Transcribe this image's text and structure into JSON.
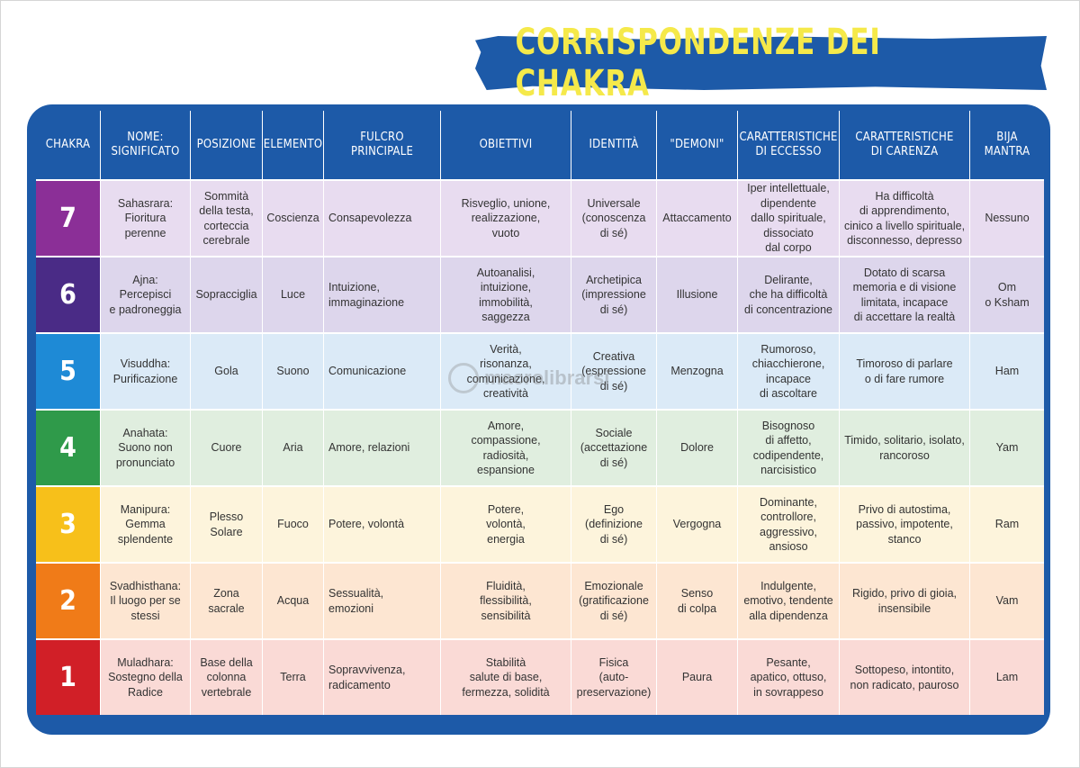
{
  "title": "CORRISPONDENZE DEI CHAKRA",
  "colors": {
    "frame": "#1d5aa8",
    "title_text": "#f5e94a",
    "chakra": [
      "#8b2f97",
      "#4a2b86",
      "#1e8ad6",
      "#2f9a4a",
      "#f7c01a",
      "#f07b18",
      "#d11f27"
    ],
    "row_bg": [
      "#e8dcf0",
      "#ddd6ec",
      "#dbeaf7",
      "#e0eedf",
      "#fdf4dc",
      "#fde6d2",
      "#fadad6"
    ]
  },
  "headers": [
    "Chakra",
    "Nome:\nSignificato",
    "Posizione",
    "Elemento",
    "Fulcro\nprincipale",
    "Obiettivi",
    "Identità",
    "\"Demoni\"",
    "Caratteristiche\ndi eccesso",
    "Caratteristiche\ndi carenza",
    "Bija\nmantra"
  ],
  "rows": [
    {
      "number": "7",
      "cells": [
        "Sahasrara:\nFioritura\nperenne",
        "Sommità\ndella testa,\ncorteccia\ncerebrale",
        "Coscienza",
        "Consapevolezza",
        "Risveglio, unione,\nrealizzazione,\nvuoto",
        "Universale\n(conoscenza\ndi sé)",
        "Attaccamento",
        "Iper intellettuale,\ndipendente\ndallo spirituale,\ndissociato\ndal corpo",
        "Ha difficoltà\ndi apprendimento,\ncinico a livello spirituale,\ndisconnesso, depresso",
        "Nessuno"
      ]
    },
    {
      "number": "6",
      "cells": [
        "Ajna:\nPercepisci\ne padroneggia",
        "Sopracciglia",
        "Luce",
        "Intuizione,\nimmaginazione",
        "Autoanalisi,\nintuizione,\nimmobilità,\nsaggezza",
        "Archetipica\n(impressione\ndi sé)",
        "Illusione",
        "Delirante,\nche ha difficoltà\ndi concentrazione",
        "Dotato di scarsa\nmemoria e di visione\nlimitata, incapace\ndi accettare la realtà",
        "Om\no Ksham"
      ]
    },
    {
      "number": "5",
      "cells": [
        "Visuddha:\nPurificazione",
        "Gola",
        "Suono",
        "Comunicazione",
        "Verità,\nrisonanza,\ncomunicazione,\ncreatività",
        "Creativa\n(espressione\ndi sé)",
        "Menzogna",
        "Rumoroso,\nchiacchierone,\nincapace\ndi ascoltare",
        "Timoroso di parlare\no di fare rumore",
        "Ham"
      ]
    },
    {
      "number": "4",
      "cells": [
        "Anahata:\nSuono non\npronunciato",
        "Cuore",
        "Aria",
        "Amore, relazioni",
        "Amore,\ncompassione,\nradiosità,\nespansione",
        "Sociale\n(accettazione\ndi sé)",
        "Dolore",
        "Bisognoso\ndi affetto,\ncodipendente,\nnarcisistico",
        "Timido, solitario, isolato,\nrancoroso",
        "Yam"
      ]
    },
    {
      "number": "3",
      "cells": [
        "Manipura:\nGemma\nsplendente",
        "Plesso\nSolare",
        "Fuoco",
        "Potere, volontà",
        "Potere,\nvolontà,\nenergia",
        "Ego\n(definizione\ndi sé)",
        "Vergogna",
        "Dominante,\ncontrollore,\naggressivo,\nansioso",
        "Privo di autostima,\npassivo, impotente,\nstanco",
        "Ram"
      ]
    },
    {
      "number": "2",
      "cells": [
        "Svadhisthana:\nIl luogo per se\nstessi",
        "Zona\nsacrale",
        "Acqua",
        "Sessualità,\nemozioni",
        "Fluidità,\nflessibilità,\nsensibilità",
        "Emozionale\n(gratificazione\ndi sé)",
        "Senso\ndi colpa",
        "Indulgente,\nemotivo, tendente\nalla dipendenza",
        "Rigido, privo di gioia,\ninsensibile",
        "Vam"
      ]
    },
    {
      "number": "1",
      "cells": [
        "Muladhara:\nSostegno della\nRadice",
        "Base della\ncolonna\nvertebrale",
        "Terra",
        "Sopravvivenza,\nradicamento",
        "Stabilità\nsalute di base,\nfermezza, solidità",
        "Fisica\n(auto-\npreservazione)",
        "Paura",
        "Pesante,\napatico, ottuso,\nin sovrappeso",
        "Sottopeso, intontito,\nnon radicato, pauroso",
        "Lam"
      ]
    }
  ],
  "watermark": "macrolibrarsi"
}
